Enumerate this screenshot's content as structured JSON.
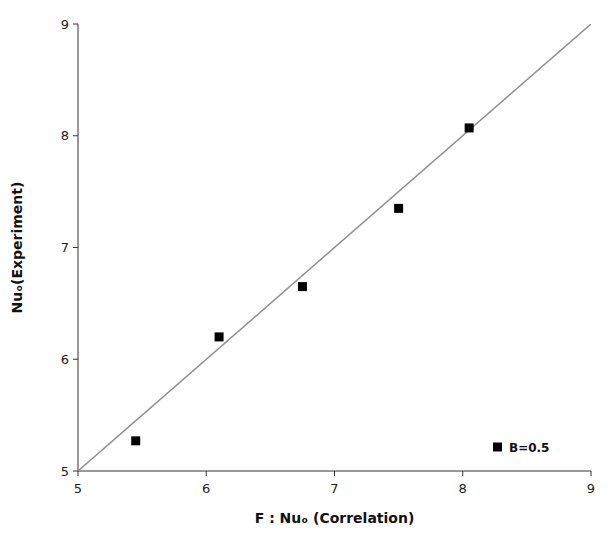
{
  "chart_data": {
    "type": "scatter",
    "xlabel": "F : Nuₒ (Correlation)",
    "ylabel": "Nuₒ(Experiment)",
    "xlim": [
      5,
      9
    ],
    "ylim": [
      5,
      9
    ],
    "xticks": [
      5,
      6,
      7,
      8,
      9
    ],
    "yticks": [
      5,
      6,
      7,
      8,
      9
    ],
    "grid": false,
    "legend": "lower right",
    "series": [
      {
        "name": "B=0.5",
        "type": "scatter",
        "color": "#000000",
        "marker": "square",
        "x": [
          5.45,
          6.1,
          6.75,
          7.5,
          8.05
        ],
        "values": [
          5.27,
          6.2,
          6.65,
          7.35,
          8.07
        ]
      },
      {
        "type": "line",
        "color": "#909090",
        "x": [
          5,
          9
        ],
        "values": [
          5,
          9
        ]
      }
    ]
  }
}
